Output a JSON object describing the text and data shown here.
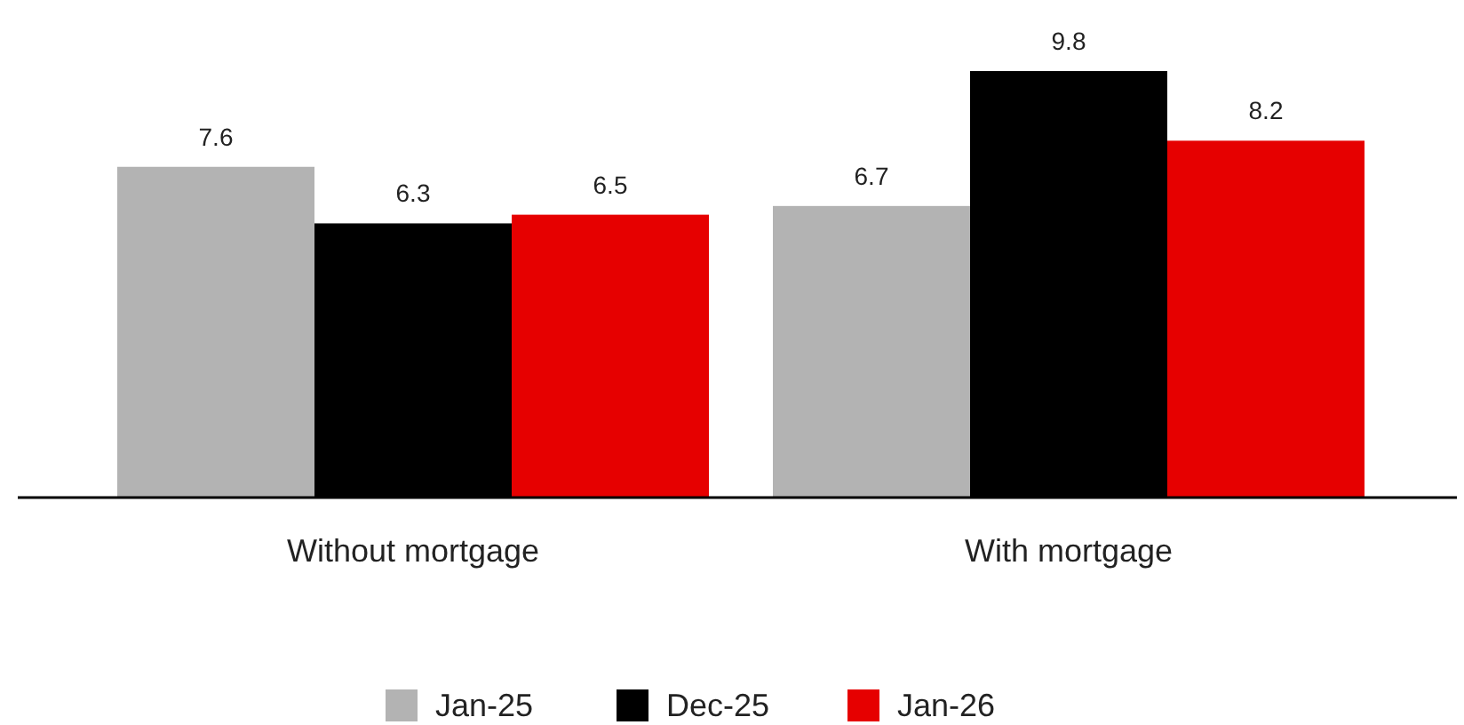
{
  "chart_data": {
    "type": "bar",
    "categories": [
      "Without mortgage",
      "With mortgage"
    ],
    "series": [
      {
        "name": "Jan-25",
        "color": "#b3b3b3",
        "values": [
          7.6,
          6.7
        ]
      },
      {
        "name": "Dec-25",
        "color": "#000000",
        "values": [
          6.3,
          9.8
        ]
      },
      {
        "name": "Jan-26",
        "color": "#e60000",
        "values": [
          6.5,
          8.2
        ]
      }
    ],
    "data_labels": true,
    "legend": "bottom"
  }
}
